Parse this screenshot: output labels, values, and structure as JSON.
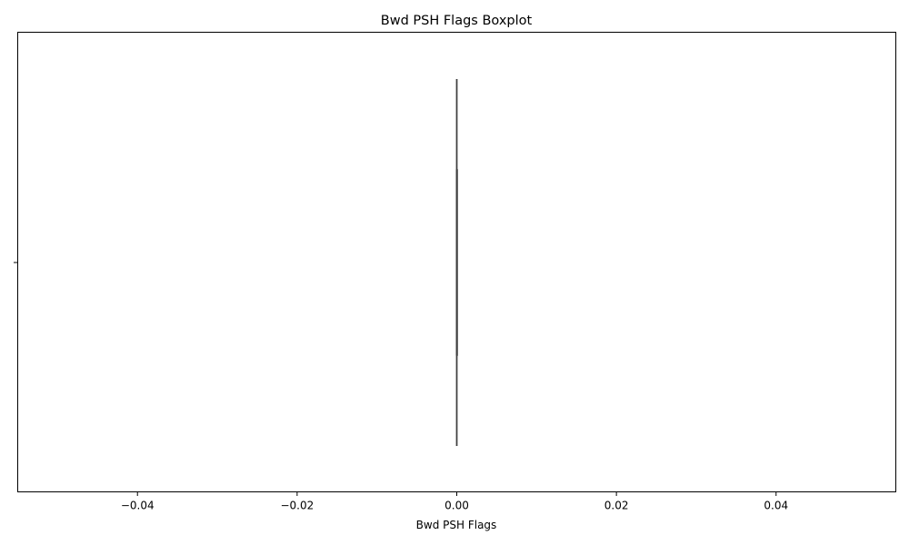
{
  "chart_data": {
    "type": "boxplot",
    "orientation": "horizontal",
    "title": "Bwd PSH Flags Boxplot",
    "xlabel": "Bwd PSH Flags",
    "ylabel": "",
    "xlim": [
      -0.055,
      0.055
    ],
    "xticks": [
      -0.04,
      -0.02,
      0.0,
      0.02,
      0.04
    ],
    "xtick_labels": [
      "−0.04",
      "−0.02",
      "0.00",
      "0.02",
      "0.04"
    ],
    "grid": false,
    "series": [
      {
        "name": "Bwd PSH Flags",
        "min": 0.0,
        "q1": 0.0,
        "median": 0.0,
        "q3": 0.0,
        "max": 0.0
      }
    ],
    "colors": {
      "box_edge": "#3f3f3f",
      "axis": "#000000"
    }
  }
}
